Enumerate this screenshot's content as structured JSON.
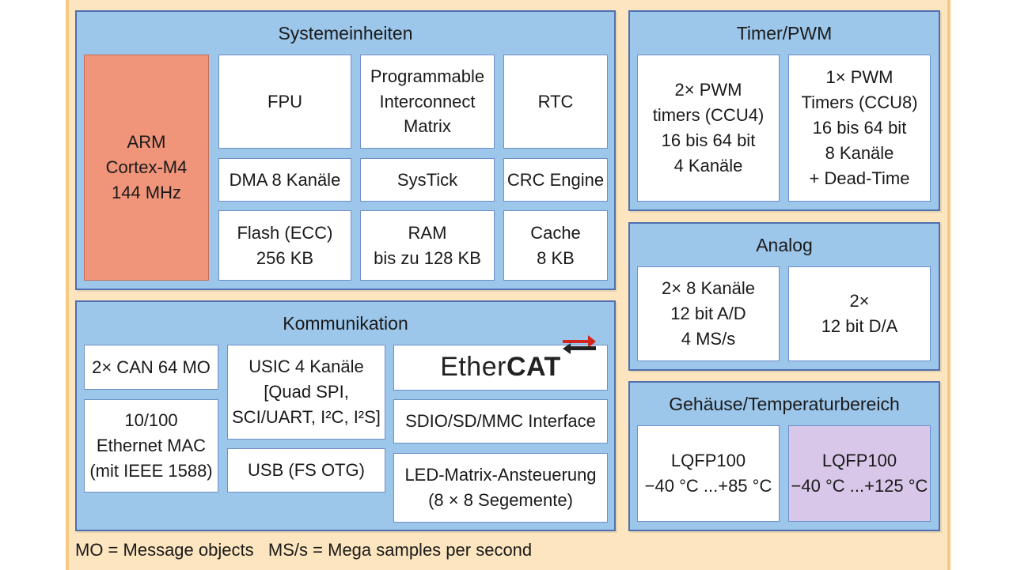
{
  "system_units": {
    "title": "Systemeinheiten",
    "arm": "ARM\nCortex-M4\n144 MHz",
    "fpu": "FPU",
    "pim": "Programmable\nInterconnect\nMatrix",
    "rtc": "RTC",
    "dma": "DMA 8 Kanäle",
    "systick": "SysTick",
    "crc": "CRC Engine",
    "flash": "Flash (ECC)\n256 KB",
    "ram": "RAM\nbis zu 128 KB",
    "cache": "Cache\n8 KB"
  },
  "timer_pwm": {
    "title": "Timer/PWM",
    "ccu4": "2× PWM\ntimers (CCU4)\n16 bis 64 bit\n4 Kanäle",
    "ccu8": "1× PWM\nTimers (CCU8)\n16 bis 64 bit\n8 Kanäle\n+ Dead-Time"
  },
  "analog": {
    "title": "Analog",
    "adc": "2× 8 Kanäle\n12 bit A/D\n4 MS/s",
    "dac": "2×\n12 bit D/A"
  },
  "communication": {
    "title": "Kommunikation",
    "can": "2× CAN 64 MO",
    "ethernet": "10/100\nEthernet MAC\n(mit IEEE 1588)",
    "usic": "USIC 4 Kanäle\n[Quad SPI,\nSCI/UART, I²C, I²S]",
    "usb": "USB (FS OTG)",
    "ethercat_light": "Ether",
    "ethercat_bold": "CAT",
    "sdio": "SDIO/SD/MMC Interface",
    "led": "LED-Matrix-Ansteuerung\n(8 × 8 Segemente)"
  },
  "package": {
    "title": "Gehäuse/Temperaturbereich",
    "lqfp1": "LQFP100\n−40 °C ...+85 °C",
    "lqfp2": "LQFP100\n−40 °C ...+125 °C"
  },
  "footer": "MO = Message objects   MS/s = Mega samples per second",
  "colors": {
    "group_fill": "#9cc6ea",
    "arm_fill": "#f0947a",
    "lqfp_highlight": "#d8c7e8",
    "ethercat_arrow": "#d0261e"
  }
}
